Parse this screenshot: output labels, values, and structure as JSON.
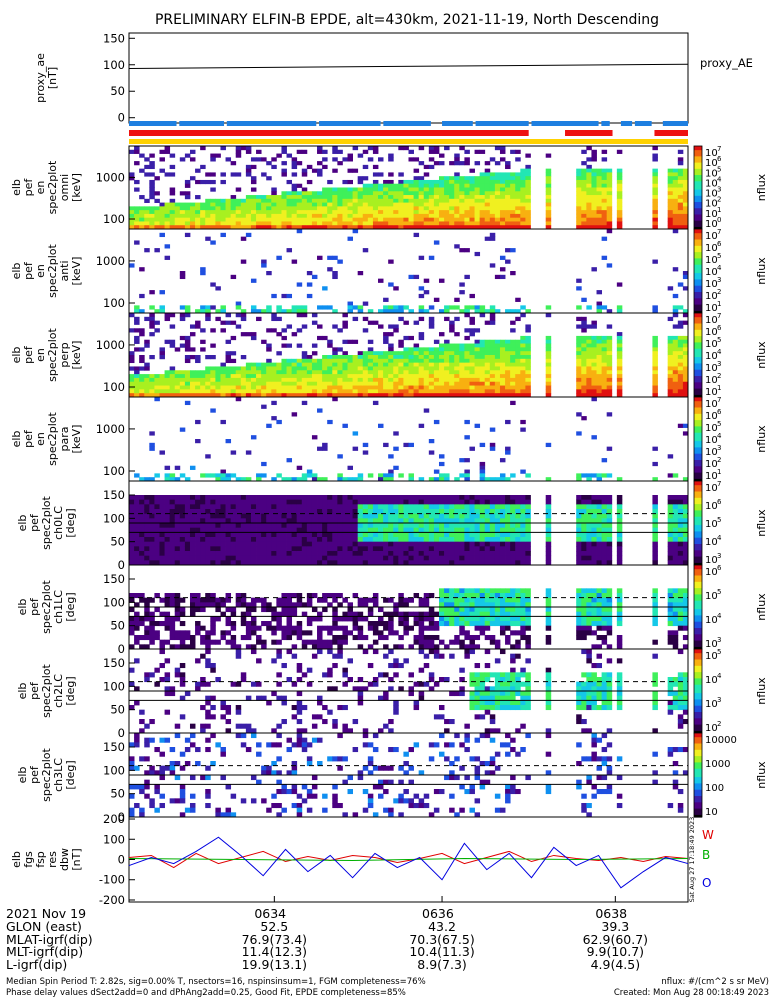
{
  "title": "PRELIMINARY ELFIN-B EPDE, alt=430km, 2021-11-19, North Descending",
  "colors": {
    "status_blue": "#1e7fe0",
    "status_red": "#ee1111",
    "status_yellow": "#ffd200",
    "trace_black": "#000000",
    "res_red": "#e00000",
    "res_green": "#00b000",
    "res_blue": "#0000e0"
  },
  "chart_data": [
    {
      "type": "line",
      "panel": "proxy_ae",
      "ylabel_lines": [
        "proxy_ae",
        "[nT]"
      ],
      "ylim": [
        -10,
        160
      ],
      "yticks": [
        "150",
        "100",
        "50",
        "0"
      ],
      "series": [
        {
          "name": "proxy_AE",
          "x": [
            0,
            1
          ],
          "values": [
            93,
            101
          ]
        }
      ]
    },
    {
      "type": "heatmap",
      "panel": "spec2plot_en_1",
      "ylabel_lines": [
        "elb",
        "pef",
        "en",
        "spec2plot",
        "omni",
        "[keV]"
      ],
      "yscale": "log",
      "yticks": [
        "1000",
        "100"
      ],
      "colorbar": {
        "label": "nflux",
        "scale": "log",
        "ticks": [
          "10",
          "10",
          "10",
          "10",
          "10",
          "10",
          "10",
          "10"
        ],
        "exponents": [
          "7",
          "6",
          "5",
          "4",
          "3",
          "2",
          "1",
          "0"
        ]
      }
    },
    {
      "type": "heatmap",
      "panel": "spec2plot_en_2",
      "ylabel_lines": [
        "elb",
        "pef",
        "en",
        "spec2plot",
        "anti",
        "[keV]"
      ],
      "yscale": "log",
      "yticks": [
        "1000",
        "100"
      ],
      "colorbar": {
        "label": "nflux",
        "scale": "log",
        "ticks": [
          "10",
          "10",
          "10",
          "10",
          "10",
          "10",
          "10"
        ],
        "exponents": [
          "7",
          "6",
          "5",
          "4",
          "3",
          "2",
          "1"
        ]
      }
    },
    {
      "type": "heatmap",
      "panel": "spec2plot_en_3",
      "ylabel_lines": [
        "elb",
        "pef",
        "en",
        "spec2plot",
        "perp",
        "[keV]"
      ],
      "yscale": "log",
      "yticks": [
        "1000",
        "100"
      ],
      "colorbar": {
        "label": "nflux",
        "scale": "log",
        "ticks": [
          "10",
          "10",
          "10",
          "10",
          "10",
          "10",
          "10"
        ],
        "exponents": [
          "7",
          "6",
          "5",
          "4",
          "3",
          "2",
          "1"
        ]
      }
    },
    {
      "type": "heatmap",
      "panel": "spec2plot_en_4",
      "ylabel_lines": [
        "elb",
        "pef",
        "en",
        "spec2plot",
        "para",
        "[keV]"
      ],
      "yscale": "log",
      "yticks": [
        "1000",
        "100"
      ],
      "colorbar": {
        "label": "nflux",
        "scale": "log",
        "ticks": [
          "10",
          "10",
          "10",
          "10",
          "10",
          "10",
          "10"
        ],
        "exponents": [
          "7",
          "6",
          "5",
          "4",
          "3",
          "2",
          "1"
        ]
      }
    },
    {
      "type": "heatmap",
      "panel": "spec2plot_ch0LC",
      "ylabel_lines": [
        "elb",
        "pef",
        "spec2plot",
        "ch0LC",
        "[deg]"
      ],
      "ylim": [
        0,
        180
      ],
      "yticks": [
        "150",
        "100",
        "50",
        "0"
      ],
      "ref_lines": [
        90,
        110,
        70
      ],
      "colorbar": {
        "label": "nflux",
        "scale": "log",
        "ticks": [
          "10",
          "10",
          "10",
          "10",
          "10"
        ],
        "exponents": [
          "7",
          "6",
          "5",
          "4",
          "3"
        ]
      }
    },
    {
      "type": "heatmap",
      "panel": "spec2plot_ch1LC",
      "ylabel_lines": [
        "elb",
        "pef",
        "spec2plot",
        "ch1LC",
        "[deg]"
      ],
      "ylim": [
        0,
        180
      ],
      "yticks": [
        "150",
        "100",
        "50",
        "0"
      ],
      "ref_lines": [
        90,
        110,
        70
      ],
      "colorbar": {
        "label": "nflux",
        "scale": "log",
        "ticks": [
          "10",
          "10",
          "10",
          "10"
        ],
        "exponents": [
          "6",
          "5",
          "4",
          "3"
        ]
      }
    },
    {
      "type": "heatmap",
      "panel": "spec2plot_ch2LC",
      "ylabel_lines": [
        "elb",
        "pef",
        "spec2plot",
        "ch2LC",
        "[deg]"
      ],
      "ylim": [
        0,
        180
      ],
      "yticks": [
        "150",
        "100",
        "50",
        "0"
      ],
      "ref_lines": [
        90,
        110,
        70
      ],
      "colorbar": {
        "label": "nflux",
        "scale": "log",
        "ticks": [
          "10",
          "10",
          "10",
          "10"
        ],
        "exponents": [
          "5",
          "4",
          "3",
          "2"
        ]
      }
    },
    {
      "type": "heatmap",
      "panel": "spec2plot_ch3LC",
      "ylabel_lines": [
        "elb",
        "pef",
        "spec2plot",
        "ch3LC",
        "[deg]"
      ],
      "ylim": [
        0,
        180
      ],
      "yticks": [
        "150",
        "100",
        "50",
        "0"
      ],
      "ref_lines": [
        90,
        110,
        70
      ],
      "colorbar": {
        "label": "nflux",
        "scale": "log",
        "ticks": [
          "10000",
          "1000",
          "100",
          "10"
        ],
        "exponents": []
      }
    },
    {
      "type": "line",
      "panel": "fgs_res_dbw",
      "ylabel_lines": [
        "elb",
        "fgs",
        "fsp",
        "res",
        "dbw",
        "[nT]"
      ],
      "ylim": [
        -210,
        210
      ],
      "yticks": [
        "200",
        "100",
        "0",
        "-100",
        "-200"
      ],
      "legend": [
        "W",
        "B",
        "O"
      ],
      "side_text": "Sat Aug 27 17:18:49 2023",
      "series": [
        {
          "name": "W",
          "x": [
            0,
            0.04,
            0.08,
            0.12,
            0.16,
            0.2,
            0.24,
            0.28,
            0.32,
            0.36,
            0.4,
            0.44,
            0.48,
            0.52,
            0.56,
            0.6,
            0.64,
            0.68,
            0.72,
            0.76,
            0.8,
            0.84,
            0.88,
            0.92,
            0.96,
            1.0
          ],
          "values": [
            10,
            20,
            -40,
            30,
            -20,
            10,
            40,
            -10,
            15,
            -5,
            20,
            10,
            -15,
            5,
            30,
            -20,
            10,
            40,
            -10,
            20,
            5,
            -5,
            10,
            -10,
            15,
            5
          ]
        },
        {
          "name": "B",
          "x": [
            0,
            0.2,
            0.4,
            0.6,
            0.8,
            1.0
          ],
          "values": [
            5,
            0,
            -5,
            5,
            0,
            5
          ]
        },
        {
          "name": "O",
          "x": [
            0,
            0.04,
            0.08,
            0.12,
            0.16,
            0.2,
            0.24,
            0.28,
            0.32,
            0.36,
            0.4,
            0.44,
            0.48,
            0.52,
            0.56,
            0.6,
            0.64,
            0.68,
            0.72,
            0.76,
            0.8,
            0.84,
            0.88,
            0.92,
            0.96,
            1.0
          ],
          "values": [
            -30,
            10,
            -20,
            40,
            110,
            20,
            -80,
            50,
            -60,
            20,
            -90,
            30,
            -40,
            10,
            -100,
            80,
            -50,
            30,
            -90,
            60,
            -30,
            20,
            -140,
            -60,
            10,
            -20
          ]
        }
      ]
    }
  ],
  "time_axis": {
    "ticks": [
      {
        "label": "0634",
        "pos": 0.26
      },
      {
        "label": "0636",
        "pos": 0.56
      },
      {
        "label": "0638",
        "pos": 0.87
      }
    ]
  },
  "table": {
    "date": "2021 Nov 19",
    "rows": [
      {
        "label": "GLON (east)",
        "values": [
          "52.5",
          "43.2",
          "39.3"
        ]
      },
      {
        "label": "MLAT-igrf(dip)",
        "values": [
          "76.9(73.4)",
          "70.3(67.5)",
          "62.9(60.7)"
        ]
      },
      {
        "label": "MLT-igrf(dip)",
        "values": [
          "11.4(12.3)",
          "10.4(11.3)",
          "9.9(10.7)"
        ]
      },
      {
        "label": "L-igrf(dip)",
        "values": [
          "19.9(13.1)",
          "8.9(7.3)",
          "4.9(4.5)"
        ]
      }
    ]
  },
  "footer": {
    "line1": "Median Spin Period T: 2.82s, sig=0.00% T, nsectors=16, nspinsinsum=1, FGM completeness=76%",
    "line2": "Phase delay values dSect2add=0 and dPhAng2add=0.25, Good Fit, EPDE completeness=85%",
    "right1": "nflux: #/(cm^2 s sr MeV)",
    "right2": "Created: Mon Aug 28 00:18:49 2023"
  }
}
